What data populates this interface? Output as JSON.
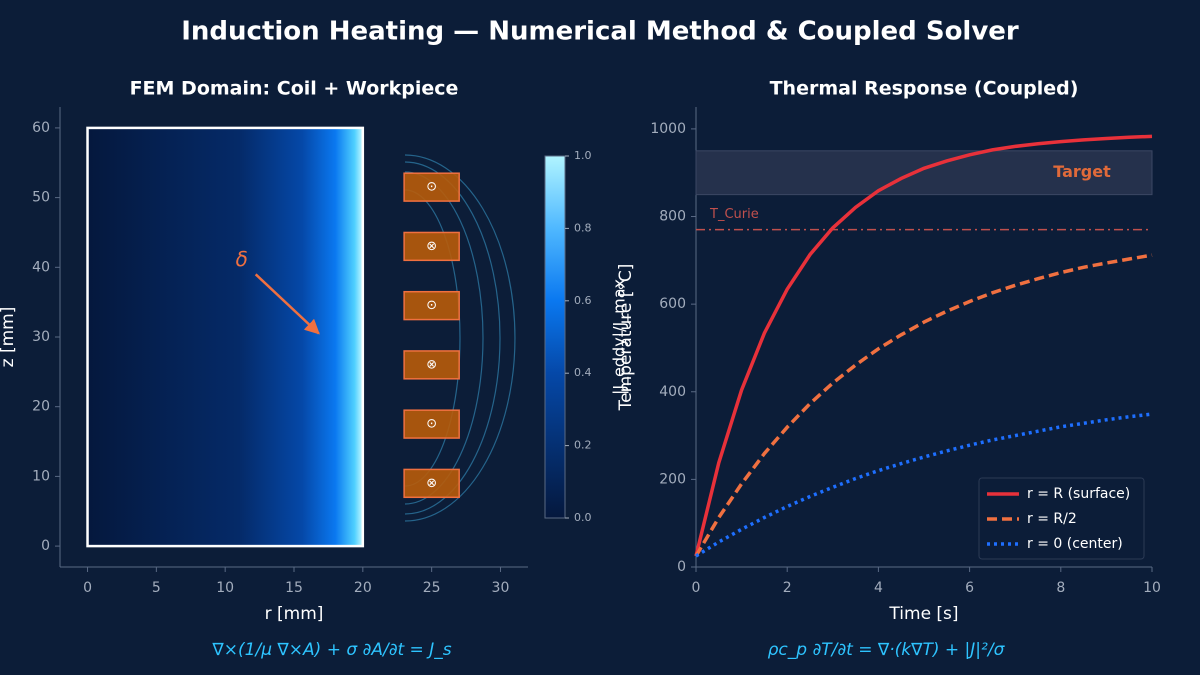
{
  "title": "Induction Heating — Numerical Method & Coupled Solver",
  "chart_data": [
    {
      "type": "fem-domain",
      "title": "FEM Domain: Coil + Workpiece",
      "x_label": "r [mm]",
      "y_label": "z [mm]",
      "xlim": [
        -2,
        32
      ],
      "ylim": [
        -3,
        63
      ],
      "xticks": [
        0,
        5,
        10,
        15,
        20,
        25,
        30
      ],
      "yticks": [
        0,
        10,
        20,
        30,
        40,
        50,
        60
      ],
      "workpiece": {
        "r": [
          0,
          20
        ],
        "z": [
          0,
          60
        ]
      },
      "coils": [
        {
          "r": [
            23,
            27
          ],
          "z": [
            49.5,
            53.5
          ],
          "symbol": "⊙"
        },
        {
          "r": [
            23,
            27
          ],
          "z": [
            41,
            45
          ],
          "symbol": "⊗"
        },
        {
          "r": [
            23,
            27
          ],
          "z": [
            32.5,
            36.5
          ],
          "symbol": "⊙"
        },
        {
          "r": [
            23,
            27
          ],
          "z": [
            24,
            28
          ],
          "symbol": "⊗"
        },
        {
          "r": [
            23,
            27
          ],
          "z": [
            15.5,
            19.5
          ],
          "symbol": "⊙"
        },
        {
          "r": [
            23,
            27
          ],
          "z": [
            7,
            11
          ],
          "symbol": "⊗"
        }
      ],
      "colorbar": {
        "label": "|J_eddy|/J_max",
        "clim": [
          0,
          1
        ],
        "cticks": [
          {
            "value": 0,
            "label": "0.0"
          },
          0.2,
          0.4,
          0.6,
          0.8,
          {
            "value": 1,
            "label": "1.0"
          }
        ]
      },
      "annotation": {
        "text": "δ",
        "xytext": [
          11.2,
          41
        ],
        "xy": [
          16.8,
          30.5
        ]
      },
      "equation": "∇×(1/μ ∇×A) + σ ∂A/∂t = J_s"
    },
    {
      "type": "line",
      "title": "Thermal Response (Coupled)",
      "x_label": "Time [s]",
      "y_label": "Temperature [°C]",
      "xlim": [
        0,
        10
      ],
      "ylim": [
        0,
        1050
      ],
      "xticks": [
        0,
        2,
        4,
        6,
        8,
        10
      ],
      "yticks": [
        0,
        200,
        400,
        600,
        800,
        1000
      ],
      "x": [
        0,
        0.5,
        1,
        1.5,
        2,
        2.5,
        3,
        3.5,
        4,
        4.5,
        5,
        5.5,
        6,
        6.5,
        7,
        7.5,
        8,
        8.5,
        9,
        9.5,
        10
      ],
      "series": [
        {
          "name": "r = R (surface)",
          "color": "#e8313a",
          "dash": "solid",
          "values": [
            25,
            238,
            404,
            534,
            634,
            713,
            774,
            821,
            859,
            887,
            910,
            927,
            941,
            952,
            960,
            966,
            971,
            975,
            978,
            981,
            983
          ]
        },
        {
          "name": "r = R/2",
          "color": "#f07040",
          "dash": "dashed",
          "values": [
            25,
            113,
            190,
            259,
            319,
            373,
            420,
            461,
            498,
            530,
            559,
            584,
            606,
            626,
            643,
            658,
            672,
            684,
            694,
            703,
            712
          ]
        },
        {
          "name": "r = 0 (center)",
          "color": "#1e6fff",
          "dash": "dotted",
          "values": [
            25,
            57,
            86,
            113,
            138,
            161,
            182,
            202,
            220,
            236,
            251,
            265,
            278,
            290,
            300,
            310,
            320,
            328,
            336,
            343,
            349
          ]
        }
      ],
      "hline": {
        "value": 770,
        "label": "T_Curie",
        "color": "#c0504d"
      },
      "band": {
        "range": [
          850,
          950
        ],
        "label": "Target"
      },
      "legend": "lower right",
      "equation": "ρc_p ∂T/∂t = ∇·(k∇T) + |J|²/σ"
    }
  ]
}
